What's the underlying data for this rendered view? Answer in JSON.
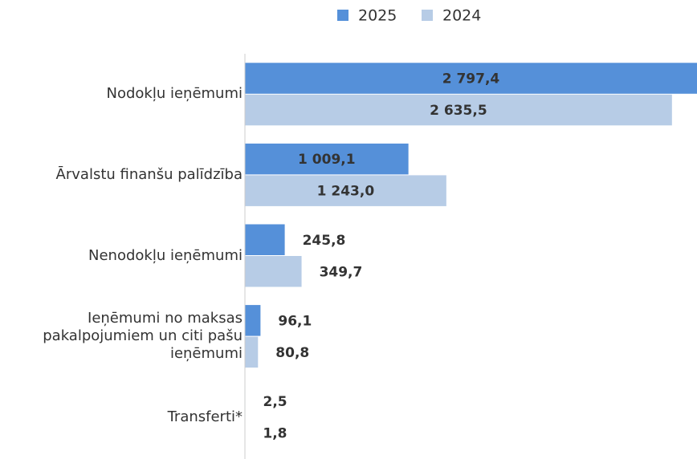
{
  "chart_data": {
    "type": "bar",
    "orientation": "horizontal",
    "categories": [
      "Nodokļu ieņēmumi",
      "Ārvalstu finanšu palīdzība",
      "Nenodokļu ieņēmumi",
      "Ieņēmumi no maksas pakalpojumiem un citi pašu ieņēmumi",
      "Transferti*"
    ],
    "series": [
      {
        "name": "2025",
        "color": "#5590d9",
        "values": [
          2797.4,
          1009.1,
          245.8,
          96.1,
          2.5
        ],
        "value_labels": [
          "2 797,4",
          "1 009,1",
          "245,8",
          "96,1",
          "2,5"
        ]
      },
      {
        "name": "2024",
        "color": "#b7cce6",
        "values": [
          2635.5,
          1243.0,
          349.7,
          80.8,
          1.8
        ],
        "value_labels": [
          "2 635,5",
          "1 243,0",
          "349,7",
          "80,8",
          "1,8"
        ]
      }
    ],
    "xlim": [
      0,
      2790
    ],
    "legend": "top"
  }
}
